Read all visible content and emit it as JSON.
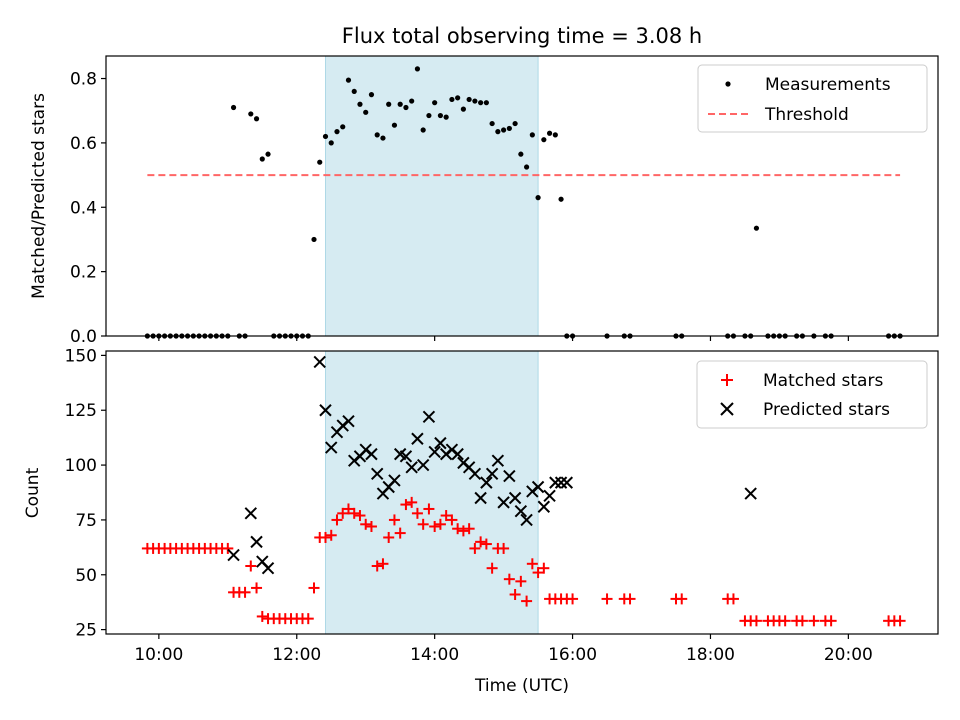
{
  "chart_data": [
    {
      "type": "scatter",
      "title": "Flux total observing time = 3.08 h",
      "xlabel": "",
      "ylabel": "Matched/Predicted stars",
      "xlim": [
        "09:14",
        "21:18"
      ],
      "ylim": [
        0,
        0.87
      ],
      "yticks": [
        "0.0",
        "0.2",
        "0.4",
        "0.6",
        "0.8"
      ],
      "yticks_values": [
        0,
        0.2,
        0.4,
        0.6,
        0.8
      ],
      "xticks_values": [
        "10:00",
        "12:00",
        "14:00",
        "16:00",
        "18:00",
        "20:00"
      ],
      "shaded_span": [
        "12:25",
        "15:30"
      ],
      "legend_position": "upper right",
      "series": [
        {
          "name": "Measurements",
          "marker": "dot",
          "color": "#000000",
          "x": [
            "09:50",
            "09:55",
            "10:00",
            "10:05",
            "10:10",
            "10:15",
            "10:20",
            "10:25",
            "10:30",
            "10:35",
            "10:40",
            "10:45",
            "10:50",
            "10:55",
            "11:00",
            "11:05",
            "11:10",
            "11:15",
            "11:20",
            "11:25",
            "11:30",
            "11:35",
            "11:40",
            "11:45",
            "11:50",
            "11:55",
            "12:00",
            "12:05",
            "12:10",
            "12:15",
            "12:20",
            "12:25",
            "12:30",
            "12:35",
            "12:40",
            "12:45",
            "12:50",
            "12:55",
            "13:00",
            "13:05",
            "13:10",
            "13:15",
            "13:20",
            "13:25",
            "13:30",
            "13:35",
            "13:40",
            "13:45",
            "13:50",
            "13:55",
            "14:00",
            "14:05",
            "14:10",
            "14:15",
            "14:20",
            "14:25",
            "14:30",
            "14:35",
            "14:40",
            "14:45",
            "14:50",
            "14:55",
            "15:00",
            "15:05",
            "15:10",
            "15:15",
            "15:20",
            "15:25",
            "15:30",
            "15:35",
            "15:40",
            "15:45",
            "15:50",
            "15:55",
            "16:00",
            "16:30",
            "16:45",
            "16:50",
            "17:30",
            "17:35",
            "18:15",
            "18:20",
            "18:30",
            "18:35",
            "18:40",
            "18:50",
            "18:55",
            "19:00",
            "19:05",
            "19:15",
            "19:20",
            "19:30",
            "19:40",
            "19:45",
            "20:35",
            "20:40",
            "20:45"
          ],
          "y": [
            0,
            0,
            0,
            0,
            0,
            0,
            0,
            0,
            0,
            0,
            0,
            0,
            0,
            0,
            0,
            0.71,
            0,
            0,
            0.69,
            0.675,
            0.55,
            0.565,
            0,
            0,
            0,
            0,
            0,
            0,
            0,
            0.3,
            0.54,
            0.62,
            0.6,
            0.635,
            0.65,
            0.795,
            0.76,
            0.72,
            0.695,
            0.75,
            0.625,
            0.615,
            0.72,
            0.655,
            0.72,
            0.71,
            0.73,
            0.83,
            0.64,
            0.685,
            0.725,
            0.685,
            0.68,
            0.735,
            0.74,
            0.705,
            0.735,
            0.73,
            0.725,
            0.725,
            0.66,
            0.635,
            0.64,
            0.645,
            0.66,
            0.565,
            0.525,
            0.625,
            0.43,
            0.61,
            0.63,
            0.625,
            0.425,
            0,
            0,
            0,
            0,
            0,
            0,
            0,
            0,
            0,
            0,
            0,
            0.335,
            0,
            0,
            0,
            0,
            0,
            0,
            0,
            0,
            0,
            0,
            0,
            0
          ]
        },
        {
          "name": "Threshold",
          "style": "dashed",
          "color": "#ff6666",
          "x": [
            "09:50",
            "20:45"
          ],
          "y": [
            0.5,
            0.5
          ]
        }
      ]
    },
    {
      "type": "scatter",
      "title": "",
      "xlabel": "Time (UTC)",
      "ylabel": "Count",
      "xlim": [
        "09:14",
        "21:18"
      ],
      "ylim": [
        23,
        152
      ],
      "yticks": [
        "25",
        "50",
        "75",
        "100",
        "125",
        "150"
      ],
      "yticks_values": [
        25,
        50,
        75,
        100,
        125,
        150
      ],
      "xticks": [
        "10:00",
        "12:00",
        "14:00",
        "16:00",
        "18:00",
        "20:00"
      ],
      "xticks_values": [
        "10:00",
        "12:00",
        "14:00",
        "16:00",
        "18:00",
        "20:00"
      ],
      "shaded_span": [
        "12:25",
        "15:30"
      ],
      "legend_position": "upper right",
      "series": [
        {
          "name": "Matched stars",
          "marker": "plus",
          "color": "#ff0000",
          "x": [
            "09:50",
            "09:55",
            "10:00",
            "10:05",
            "10:10",
            "10:15",
            "10:20",
            "10:25",
            "10:30",
            "10:35",
            "10:40",
            "10:45",
            "10:50",
            "10:55",
            "11:00",
            "11:05",
            "11:10",
            "11:15",
            "11:20",
            "11:25",
            "11:30",
            "11:35",
            "11:40",
            "11:45",
            "11:50",
            "11:55",
            "12:00",
            "12:05",
            "12:10",
            "12:15",
            "12:20",
            "12:25",
            "12:30",
            "12:35",
            "12:40",
            "12:45",
            "12:50",
            "12:55",
            "13:00",
            "13:05",
            "13:10",
            "13:15",
            "13:20",
            "13:25",
            "13:30",
            "13:35",
            "13:40",
            "13:45",
            "13:50",
            "13:55",
            "14:00",
            "14:05",
            "14:10",
            "14:15",
            "14:20",
            "14:25",
            "14:30",
            "14:35",
            "14:40",
            "14:45",
            "14:50",
            "14:55",
            "15:00",
            "15:05",
            "15:10",
            "15:15",
            "15:20",
            "15:25",
            "15:30",
            "15:35",
            "15:40",
            "15:45",
            "15:50",
            "15:55",
            "16:00",
            "16:30",
            "16:45",
            "16:50",
            "17:30",
            "17:35",
            "18:15",
            "18:20",
            "18:30",
            "18:35",
            "18:40",
            "18:50",
            "18:55",
            "19:00",
            "19:05",
            "19:15",
            "19:20",
            "19:30",
            "19:40",
            "19:45",
            "20:35",
            "20:40",
            "20:45"
          ],
          "y": [
            62,
            62,
            62,
            62,
            62,
            62,
            62,
            62,
            62,
            62,
            62,
            62,
            62,
            62,
            62,
            42,
            42,
            42,
            54,
            44,
            31,
            30,
            30,
            30,
            30,
            30,
            30,
            30,
            30,
            44,
            67,
            67,
            68,
            75,
            78,
            80,
            78,
            77,
            73,
            72,
            54,
            55,
            67,
            75,
            69,
            82,
            83,
            78,
            73,
            80,
            72,
            73,
            77,
            75,
            71,
            70,
            71,
            62,
            65,
            64,
            53,
            62,
            62,
            48,
            41,
            47,
            38,
            55,
            51,
            53,
            39,
            39,
            39,
            39,
            39,
            39,
            39,
            39,
            39,
            39,
            39,
            39,
            29,
            29,
            29,
            29,
            29,
            29,
            29,
            29,
            29,
            29,
            29,
            29,
            29,
            29,
            29
          ]
        },
        {
          "name": "Predicted stars",
          "marker": "x",
          "color": "#000000",
          "x": [
            "11:05",
            "11:20",
            "11:25",
            "11:30",
            "11:35",
            "12:20",
            "12:25",
            "12:30",
            "12:35",
            "12:40",
            "12:45",
            "12:50",
            "12:55",
            "13:00",
            "13:05",
            "13:10",
            "13:15",
            "13:20",
            "13:25",
            "13:30",
            "13:35",
            "13:40",
            "13:45",
            "13:50",
            "13:55",
            "14:00",
            "14:05",
            "14:10",
            "14:15",
            "14:20",
            "14:25",
            "14:30",
            "14:35",
            "14:40",
            "14:45",
            "14:50",
            "14:55",
            "15:00",
            "15:05",
            "15:10",
            "15:15",
            "15:20",
            "15:25",
            "15:30",
            "15:35",
            "15:40",
            "15:45",
            "15:50",
            "15:55",
            "18:35"
          ],
          "y": [
            59,
            78,
            65,
            56,
            53,
            147,
            125,
            108,
            115,
            118,
            120,
            102,
            104,
            107,
            105,
            96,
            87,
            90,
            93,
            105,
            104,
            99,
            112,
            100,
            122,
            106,
            110,
            105,
            107,
            105,
            101,
            99,
            96,
            85,
            92,
            96,
            102,
            83,
            95,
            85,
            79,
            75,
            88,
            90,
            81,
            86,
            92,
            92,
            92,
            87
          ]
        }
      ]
    }
  ]
}
